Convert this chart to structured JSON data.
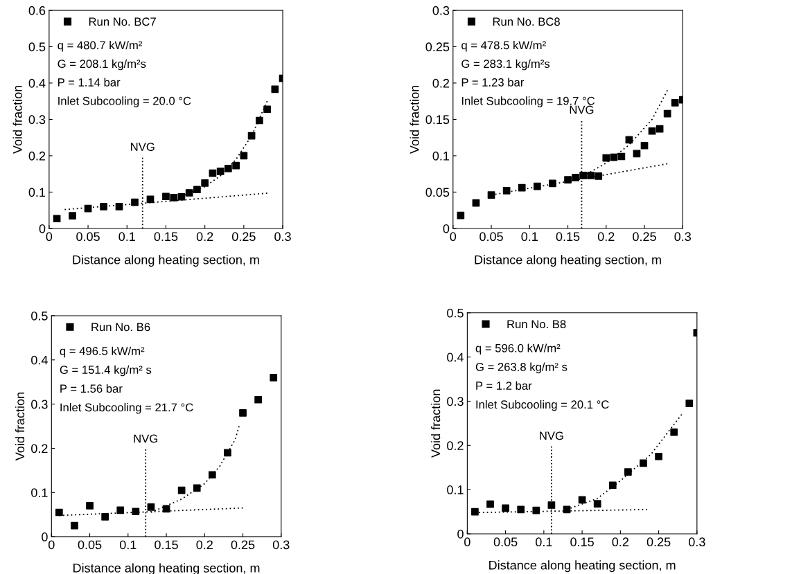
{
  "chart_data": [
    {
      "type": "scatter",
      "xlabel": "Distance along heating section, m",
      "ylabel": "Void fraction",
      "xlim": [
        0,
        0.3
      ],
      "ylim": [
        0,
        0.6
      ],
      "xticks": [
        0,
        0.05,
        0.1,
        0.15,
        0.2,
        0.25,
        0.3
      ],
      "yticks": [
        0,
        0.1,
        0.2,
        0.3,
        0.4,
        0.5,
        0.6
      ],
      "marker": "square",
      "legend": "top left",
      "grid": false,
      "annotations": [
        "q = 480.7 kW/m²",
        "G = 208.1 kg/m²s",
        "P = 1.14 bar",
        "Inlet Subcooling = 20.0 °C"
      ],
      "ref_lines": [
        {
          "axis": "x",
          "value": 0.12,
          "label": "NVG",
          "color": "#000000",
          "line_style": "dotted"
        }
      ],
      "series": [
        {
          "name": "Run No. BC7",
          "color": "#000000",
          "x": [
            0.01,
            0.03,
            0.05,
            0.07,
            0.09,
            0.11,
            0.13,
            0.15,
            0.16,
            0.17,
            0.18,
            0.19,
            0.2,
            0.21,
            0.22,
            0.23,
            0.24,
            0.25,
            0.26,
            0.27,
            0.28,
            0.29,
            0.3
          ],
          "values": [
            0.027,
            0.035,
            0.055,
            0.06,
            0.06,
            0.072,
            0.08,
            0.088,
            0.085,
            0.087,
            0.098,
            0.107,
            0.125,
            0.152,
            0.157,
            0.165,
            0.173,
            0.2,
            0.255,
            0.297,
            0.328,
            0.383,
            0.413
          ]
        },
        {
          "type": "line",
          "line_style": "dotted",
          "marker": "none",
          "color": "#000000",
          "x": [
            0.02,
            0.28
          ],
          "values": [
            0.052,
            0.097
          ]
        },
        {
          "type": "line",
          "line_style": "dotted",
          "marker": "none",
          "color": "#000000",
          "x": [
            0.17,
            0.2,
            0.22,
            0.24,
            0.26,
            0.28
          ],
          "values": [
            0.088,
            0.115,
            0.145,
            0.19,
            0.255,
            0.35
          ]
        }
      ]
    },
    {
      "type": "scatter",
      "xlabel": "Distance along heating section, m",
      "ylabel": "Void fraction",
      "xlim": [
        0,
        0.3
      ],
      "ylim": [
        0,
        0.3
      ],
      "xticks": [
        0,
        0.05,
        0.1,
        0.15,
        0.2,
        0.25,
        0.3
      ],
      "yticks": [
        0,
        0.05,
        0.1,
        0.15,
        0.2,
        0.25,
        0.3
      ],
      "marker": "square",
      "legend": "top left",
      "grid": false,
      "annotations": [
        "q = 478.5 kW/m²",
        "G = 283.1 kg/m²s",
        "P = 1.23 bar",
        "Inlet Subcooling = 19.7 °C"
      ],
      "ref_lines": [
        {
          "axis": "x",
          "value": 0.168,
          "label": "NVG",
          "color": "#000000",
          "line_style": "dotted"
        }
      ],
      "series": [
        {
          "name": "Run No. BC8",
          "color": "#000000",
          "x": [
            0.01,
            0.03,
            0.05,
            0.07,
            0.09,
            0.11,
            0.13,
            0.15,
            0.16,
            0.17,
            0.18,
            0.19,
            0.2,
            0.21,
            0.22,
            0.23,
            0.24,
            0.25,
            0.26,
            0.27,
            0.28,
            0.29,
            0.3
          ],
          "values": [
            0.018,
            0.035,
            0.046,
            0.052,
            0.056,
            0.058,
            0.062,
            0.067,
            0.07,
            0.073,
            0.073,
            0.072,
            0.097,
            0.098,
            0.099,
            0.122,
            0.103,
            0.114,
            0.134,
            0.137,
            0.158,
            0.173,
            0.177
          ]
        },
        {
          "type": "line",
          "line_style": "dotted",
          "marker": "none",
          "color": "#000000",
          "x": [
            0.05,
            0.28
          ],
          "values": [
            0.046,
            0.089
          ]
        },
        {
          "type": "line",
          "line_style": "dotted",
          "marker": "none",
          "color": "#000000",
          "x": [
            0.17,
            0.2,
            0.23,
            0.26,
            0.28
          ],
          "values": [
            0.072,
            0.09,
            0.115,
            0.15,
            0.19
          ]
        }
      ]
    },
    {
      "type": "scatter",
      "xlabel": "Distance along heating section, m",
      "ylabel": "Void fraction",
      "xlim": [
        0,
        0.3
      ],
      "ylim": [
        0,
        0.5
      ],
      "xticks": [
        0,
        0.05,
        0.1,
        0.15,
        0.2,
        0.25,
        0.3
      ],
      "yticks": [
        0,
        0.1,
        0.2,
        0.3,
        0.4,
        0.5
      ],
      "marker": "square",
      "legend": "top left",
      "grid": false,
      "annotations": [
        "q = 496.5 kW/m²",
        "G = 151.4 kg/m² s",
        "P = 1.56 bar",
        "Inlet Subcooling = 21.7 °C"
      ],
      "ref_lines": [
        {
          "axis": "x",
          "value": 0.123,
          "label": "NVG",
          "color": "#000000",
          "line_style": "dotted"
        }
      ],
      "series": [
        {
          "name": "Run No. B6",
          "color": "#000000",
          "x": [
            0.01,
            0.03,
            0.05,
            0.07,
            0.09,
            0.11,
            0.13,
            0.15,
            0.17,
            0.19,
            0.21,
            0.23,
            0.25,
            0.27,
            0.29
          ],
          "values": [
            0.055,
            0.025,
            0.07,
            0.045,
            0.06,
            0.057,
            0.067,
            0.063,
            0.105,
            0.11,
            0.14,
            0.19,
            0.28,
            0.31,
            0.36
          ]
        },
        {
          "type": "line",
          "line_style": "dotted",
          "marker": "none",
          "color": "#000000",
          "x": [
            0.01,
            0.25
          ],
          "values": [
            0.048,
            0.065
          ]
        },
        {
          "type": "line",
          "line_style": "dotted",
          "marker": "none",
          "color": "#000000",
          "x": [
            0.13,
            0.17,
            0.2,
            0.22,
            0.24,
            0.245
          ],
          "values": [
            0.055,
            0.085,
            0.12,
            0.16,
            0.22,
            0.25
          ]
        }
      ]
    },
    {
      "type": "scatter",
      "xlabel": "Distance along heating section, m",
      "ylabel": "Void fraction",
      "xlim": [
        0,
        0.3
      ],
      "ylim": [
        0,
        0.5
      ],
      "xticks": [
        0,
        0.05,
        0.1,
        0.15,
        0.2,
        0.25,
        0.3
      ],
      "yticks": [
        0,
        0.1,
        0.2,
        0.3,
        0.4,
        0.5
      ],
      "marker": "square",
      "legend": "top left",
      "grid": false,
      "annotations": [
        "q = 596.0 kW/m²",
        "G = 263.8 kg/m² s",
        "P = 1.2 bar",
        "Inlet Subcooling = 20.1 °C"
      ],
      "ref_lines": [
        {
          "axis": "x",
          "value": 0.11,
          "label": "NVG",
          "color": "#000000",
          "line_style": "dotted"
        }
      ],
      "series": [
        {
          "name": "Run No. B8",
          "color": "#000000",
          "x": [
            0.01,
            0.03,
            0.05,
            0.07,
            0.09,
            0.11,
            0.13,
            0.15,
            0.17,
            0.19,
            0.21,
            0.23,
            0.25,
            0.27,
            0.29,
            0.3
          ],
          "values": [
            0.05,
            0.067,
            0.058,
            0.055,
            0.053,
            0.065,
            0.055,
            0.077,
            0.068,
            0.11,
            0.14,
            0.16,
            0.175,
            0.23,
            0.295,
            0.455
          ]
        },
        {
          "type": "line",
          "line_style": "dotted",
          "marker": "none",
          "color": "#000000",
          "x": [
            0.01,
            0.235
          ],
          "values": [
            0.048,
            0.055
          ]
        },
        {
          "type": "line",
          "line_style": "dotted",
          "marker": "none",
          "color": "#000000",
          "x": [
            0.13,
            0.17,
            0.2,
            0.24,
            0.28
          ],
          "values": [
            0.055,
            0.08,
            0.12,
            0.18,
            0.27
          ]
        }
      ]
    }
  ]
}
